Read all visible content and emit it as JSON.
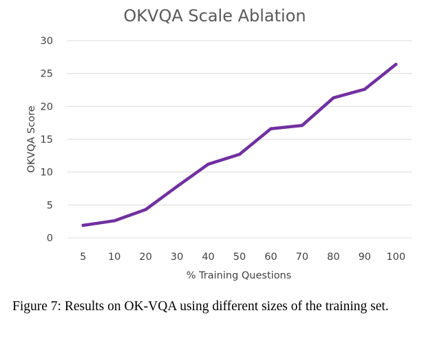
{
  "chart_data": {
    "type": "line",
    "title": "OKVQA Scale Ablation",
    "xlabel": "% Training Questions",
    "ylabel": "OKVQA Score",
    "categories": [
      "5",
      "10",
      "20",
      "30",
      "40",
      "50",
      "60",
      "70",
      "80",
      "90",
      "100"
    ],
    "series": [
      {
        "name": "OKVQA Score",
        "values": [
          1.9,
          2.6,
          4.3,
          7.8,
          11.2,
          12.7,
          16.6,
          17.1,
          21.3,
          22.6,
          26.4
        ]
      }
    ],
    "ylim": [
      0,
      30
    ],
    "yticks": [
      "0",
      "5",
      "10",
      "15",
      "20",
      "25",
      "30"
    ],
    "grid": true,
    "legend": "none",
    "color": "#7030a0"
  },
  "caption": "Figure 7: Results on OK-VQA using different sizes of the training set."
}
